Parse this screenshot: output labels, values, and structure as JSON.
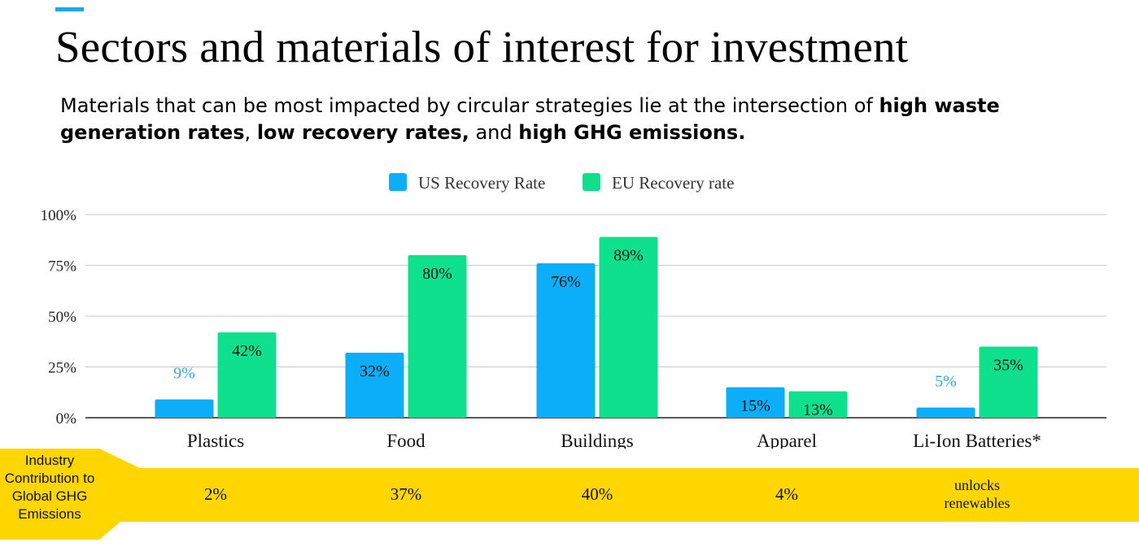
{
  "header": {
    "title": "Sectors and materials of interest for investment",
    "accent_color": "#1BA6F0",
    "subtitle": {
      "part1": "Materials that can be most impacted by circular strategies lie at the intersection of ",
      "bold1": "high waste generation rates",
      "part2": ", ",
      "bold2": "low recovery rates,",
      "part3": " and ",
      "bold3": "high GHG emissions."
    }
  },
  "chart_data": {
    "type": "bar",
    "categories": [
      "Plastics",
      "Food",
      "Buildings",
      "Apparel",
      "Li-Ion Batteries*"
    ],
    "series": [
      {
        "name": "US Recovery Rate",
        "values": [
          9,
          32,
          76,
          15,
          5
        ],
        "labels": [
          "9%",
          "32%",
          "76%",
          "15%",
          "5%"
        ],
        "color": "#0DAEF9"
      },
      {
        "name": "EU Recovery rate",
        "values": [
          42,
          80,
          89,
          13,
          35
        ],
        "labels": [
          "42%",
          "80%",
          "89%",
          "13%",
          "35%"
        ],
        "color": "#0FE08D"
      }
    ],
    "y_ticks": [
      "0%",
      "25%",
      "50%",
      "75%",
      "100%"
    ],
    "ylim": [
      0,
      100
    ],
    "grid": true,
    "legend_position": "top-center",
    "outside_label_color": "#2DA8E0"
  },
  "ghg_row": {
    "header": "Industry Contribution to Global GHG Emissions",
    "values": [
      "2%",
      "37%",
      "40%",
      "4%",
      "unlocks renewables"
    ],
    "band_color": "#FFD600"
  }
}
